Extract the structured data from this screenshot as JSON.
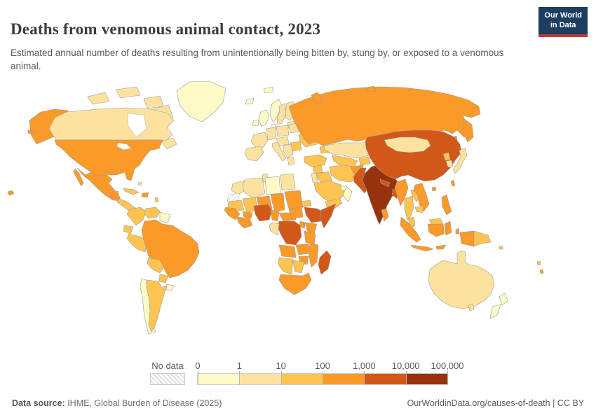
{
  "header": {
    "title": "Deaths from venomous animal contact, 2023",
    "subtitle": "Estimated annual number of deaths resulting from unintentionally being bitten by, stung by, or exposed to a venomous animal.",
    "logo": {
      "line1": "Our World",
      "line2": "in Data"
    }
  },
  "legend": {
    "no_data_label": "No data",
    "tick_labels": [
      "0",
      "1",
      "10",
      "100",
      "1,000",
      "10,000",
      "100,000"
    ]
  },
  "footer": {
    "source_label": "Data source:",
    "source_text": " IHME, Global Burden of Disease (2025)",
    "credit": "OurWorldinData.org/causes-of-death | CC BY"
  },
  "chart_data": {
    "type": "choropleth_map",
    "title": "Deaths from venomous animal contact",
    "year": 2023,
    "unit": "deaths",
    "scale": "log",
    "bin_edges": [
      0,
      1,
      10,
      100,
      1000,
      10000,
      100000
    ],
    "bin_colors": [
      "#fcfbc7",
      "#fde29f",
      "#fdc452",
      "#fb9929",
      "#d2581a",
      "#97330c"
    ],
    "no_data_fill": "hatch",
    "border_color": "#9a9a9a",
    "regions": [
      {
        "n": "greenland",
        "b": 0,
        "s": "252,130 270,117 298,116 322,126 318,146 306,160 288,174 270,166 256,150"
      },
      {
        "n": "canada-arctic-west",
        "b": 1,
        "s": "125,138 150,132 156,145 132,149"
      },
      {
        "n": "canada-arctic-mid",
        "b": 1,
        "s": "165,128 195,124 200,136 172,140"
      },
      {
        "n": "canada-arctic-east",
        "b": 1,
        "s": "205,141 228,137 233,152 210,155"
      },
      {
        "n": "baffin-island",
        "b": 1,
        "s": "218,156 240,150 247,168 228,173"
      },
      {
        "n": "alaska",
        "b": 3,
        "s": "42,172 58,160 78,156 97,158 97,198 80,194 66,200 52,206 44,192"
      },
      {
        "n": "aleutians",
        "b": 3,
        "s": "40,186 52,188 48,192 40,190"
      },
      {
        "n": "canada",
        "b": 1,
        "s": "95,160 140,156 180,154 215,156 240,162 248,172 238,182 246,192 236,202 228,200 80,200 70,184 78,168"
      },
      {
        "n": "hudson-bay",
        "b": "water",
        "s": "182,162 205,164 209,184 194,196 183,180"
      },
      {
        "n": "newfoundland-maritimes",
        "b": 1,
        "s": "230,202 247,197 252,206 238,213"
      },
      {
        "n": "usa",
        "b": 3,
        "s": "78,200 232,200 227,212 214,215 206,225 199,236 192,241 187,258 181,256 178,246 166,250 152,250 140,252 127,244 114,235 101,225 89,213 80,206"
      },
      {
        "n": "great-lakes",
        "b": "water",
        "s": "168,204 181,206 187,212 176,214 167,209"
      },
      {
        "n": "hawaii",
        "b": 3,
        "s": "11,274 17,272 20,277 13,279"
      },
      {
        "n": "mexico",
        "b": 3,
        "s": "110,240 122,250 130,246 141,252 152,250 160,256 155,262 162,270 170,280 172,287 161,286 149,278 138,268 128,258 118,250"
      },
      {
        "n": "baja-california",
        "b": 3,
        "s": "107,241 113,248 119,261 116,266 110,255 105,246"
      },
      {
        "n": "yucatan",
        "b": 3,
        "s": "157,275 168,273 170,281 160,284"
      },
      {
        "n": "central-america",
        "b": 2,
        "s": "170,284 181,288 191,296 199,300 195,305 184,301 173,293 167,289"
      },
      {
        "n": "cuba",
        "b": 2,
        "s": "176,269 191,271 198,275 190,278 178,273"
      },
      {
        "n": "hispaniola",
        "b": 3,
        "s": "203,276 212,275 210,282 202,281"
      },
      {
        "n": "bahamas",
        "b": 1,
        "s": "197,261 201,260 202,264 198,265"
      },
      {
        "n": "lesser-antilles",
        "b": 2,
        "s": "221,283 225,282 226,288 222,289"
      },
      {
        "n": "colombia",
        "b": 2,
        "s": "184,300 200,296 208,302 204,314 194,322 186,312 181,306"
      },
      {
        "n": "venezuela",
        "b": 2,
        "s": "208,298 222,296 228,302 224,310 212,312 206,306"
      },
      {
        "n": "guyanas",
        "b": 0,
        "s": "228,303 243,307 239,319 228,315"
      },
      {
        "n": "ecuador",
        "b": 2,
        "s": "177,322 190,324 186,334 176,330"
      },
      {
        "n": "peru",
        "b": 2,
        "s": "184,334 200,338 210,346 207,360 196,356 187,348 181,340"
      },
      {
        "n": "brazil",
        "b": 3,
        "s": "206,316 222,314 232,320 246,322 258,330 272,338 282,348 284,361 278,374 268,386 254,394 242,397 236,388 232,378 222,374 212,366 208,352 204,340 202,329"
      },
      {
        "n": "bolivia",
        "b": 2,
        "s": "212,368 228,372 234,382 228,390 216,384 210,376"
      },
      {
        "n": "paraguay",
        "b": 2,
        "s": "228,392 240,394 236,404 227,402"
      },
      {
        "n": "uruguay",
        "b": 0,
        "s": "238,406 248,408 244,416 237,413"
      },
      {
        "n": "chile",
        "b": 0,
        "s": "202,398 208,400 211,414 213,432 215,452 218,466 222,474 212,477 208,462 205,444 203,424 200,410"
      },
      {
        "n": "argentina",
        "b": 2,
        "s": "210,400 226,402 230,410 238,409 234,420 230,434 226,450 221,466 216,474 212,463 214,444 212,424 209,410"
      },
      {
        "n": "iceland",
        "b": 0,
        "s": "352,143 362,140 360,148 350,149"
      },
      {
        "n": "svalbard",
        "b": 0,
        "s": "376,127 388,124 390,131 378,133"
      },
      {
        "n": "uk",
        "b": 0,
        "s": "372,160 380,157 384,166 380,176 373,181 369,170"
      },
      {
        "n": "ireland",
        "b": 0,
        "s": "362,172 369,171 368,180 360,179"
      },
      {
        "n": "norway",
        "b": 0,
        "s": "388,148 398,142 402,152 396,164 390,175 385,165 386,155"
      },
      {
        "n": "sweden",
        "b": 1,
        "s": "398,152 406,148 408,162 402,176 396,178 395,168 399,160"
      },
      {
        "n": "finland",
        "b": 1,
        "s": "408,148 418,145 420,160 414,172 407,168 408,156"
      },
      {
        "n": "baltics",
        "b": 1,
        "s": "410,175 420,173 422,183 412,184"
      },
      {
        "n": "denmark",
        "b": 0,
        "s": "386,178 392,177 393,184 387,184"
      },
      {
        "n": "germany",
        "b": 1,
        "s": "380,184 392,182 394,198 382,200"
      },
      {
        "n": "poland",
        "b": 1,
        "s": "394,181 410,179 412,193 396,195"
      },
      {
        "n": "belarus",
        "b": 1,
        "s": "412,178 424,176 426,188 414,190"
      },
      {
        "n": "france",
        "b": 1,
        "s": "362,192 378,189 382,200 376,210 366,212 358,202"
      },
      {
        "n": "iberia",
        "b": 1,
        "s": "352,212 372,209 376,218 366,230 354,228 349,219"
      },
      {
        "n": "italy",
        "b": 1,
        "s": "388,205 396,203 402,216 408,226 403,230 396,220 389,211"
      },
      {
        "n": "central-europe",
        "b": 1,
        "s": "394,198 410,195 412,206 398,208"
      },
      {
        "n": "balkans",
        "b": 1,
        "s": "404,208 416,206 418,220 410,226 404,216"
      },
      {
        "n": "greece",
        "b": 1,
        "s": "410,226 418,224 420,234 412,236"
      },
      {
        "n": "romania",
        "b": 2,
        "s": "414,204 428,202 430,214 418,216"
      },
      {
        "n": "ukraine",
        "b": 2,
        "s": "426,192 448,189 456,196 452,206 436,210 428,202"
      },
      {
        "n": "turkey",
        "b": 2,
        "s": "434,224 456,221 466,226 462,236 444,238 434,232"
      },
      {
        "n": "caucasus",
        "b": 2,
        "s": "456,210 468,208 470,218 458,219"
      },
      {
        "n": "russia",
        "b": 3,
        "s": "412,152 430,144 452,136 475,130 505,126 540,124 575,125 610,129 642,135 668,143 683,152 685,163 672,168 660,165 666,177 670,189 662,196 652,186 645,191 635,186 622,188 608,191 592,194 576,197 562,199 548,201 536,203 524,199 510,202 496,199 482,203 470,206 460,208 450,202 440,206 432,196 426,186 418,170"
      },
      {
        "n": "novaya-zemlya",
        "b": 3,
        "s": "444,136 452,132 460,139 456,149 448,145"
      },
      {
        "n": "severnaya-zemlya",
        "b": 3,
        "s": "522,125 534,123 536,130 524,131"
      },
      {
        "n": "kamchatka",
        "b": 3,
        "s": "662,170 673,178 675,196 667,203 660,188"
      },
      {
        "n": "sakhalin",
        "b": 3,
        "s": "646,196 651,194 653,210 648,212"
      },
      {
        "n": "kazakhstan",
        "b": 1,
        "s": "462,208 490,204 515,204 532,203 538,213 526,222 508,226 490,222 474,220 463,214"
      },
      {
        "n": "uzbekistan-turkmenistan",
        "b": 2,
        "s": "474,222 500,226 510,230 504,240 488,238 476,230"
      },
      {
        "n": "kyrgyzstan-tajikistan",
        "b": 2,
        "s": "512,226 526,224 528,234 514,236"
      },
      {
        "n": "syria",
        "b": 2,
        "s": "446,238 458,236 460,246 448,248"
      },
      {
        "n": "iraq",
        "b": 2,
        "s": "452,248 468,245 474,258 460,262 452,254"
      },
      {
        "n": "levant",
        "b": 1,
        "s": "444,248 451,247 453,262 446,260"
      },
      {
        "n": "saudi-arabia",
        "b": 2,
        "s": "448,262 470,258 486,264 492,276 478,292 462,284 450,272"
      },
      {
        "n": "yemen",
        "b": 2,
        "s": "464,288 484,284 488,290 474,300 466,295"
      },
      {
        "n": "oman",
        "b": 0,
        "s": "494,266 502,274 497,288 489,280"
      },
      {
        "n": "uae",
        "b": 0,
        "s": "486,266 494,266 492,272 486,271"
      },
      {
        "n": "iran",
        "b": 2,
        "s": "470,238 492,236 508,240 514,254 500,260 484,258 472,250"
      },
      {
        "n": "morocco",
        "b": 1,
        "s": "332,262 348,258 352,270 340,278 330,272"
      },
      {
        "n": "western-sahara",
        "b": null,
        "s": "326,278 342,276 338,290 324,288"
      },
      {
        "n": "algeria",
        "b": 1,
        "s": "350,256 374,254 378,276 362,284 348,274 346,264"
      },
      {
        "n": "tunisia",
        "b": 1,
        "s": "374,250 381,248 382,258 376,260"
      },
      {
        "n": "libya",
        "b": 0,
        "s": "378,254 398,252 400,276 380,278"
      },
      {
        "n": "egypt",
        "b": 1,
        "s": "400,250 418,248 421,270 402,272"
      },
      {
        "n": "mauritania",
        "b": 2,
        "s": "326,288 344,286 348,300 332,302 325,294"
      },
      {
        "n": "mali",
        "b": 2,
        "s": "346,284 364,282 368,300 352,304 348,292"
      },
      {
        "n": "niger",
        "b": 3,
        "s": "366,282 384,280 388,298 372,302 368,290"
      },
      {
        "n": "chad",
        "b": 3,
        "s": "386,278 404,276 406,300 392,302 388,288"
      },
      {
        "n": "sudan",
        "b": 3,
        "s": "406,274 428,272 432,296 412,298 408,284"
      },
      {
        "n": "eritrea",
        "b": 2,
        "s": "430,288 442,286 444,294 432,296"
      },
      {
        "n": "senegal-guinea",
        "b": 3,
        "s": "322,296 336,298 342,306 336,314 326,308 320,300"
      },
      {
        "n": "burkina-faso",
        "b": 3,
        "s": "346,302 360,304 358,312 348,310"
      },
      {
        "n": "ivory-coast-ghana",
        "b": 3,
        "s": "338,310 356,312 360,322 348,326 340,318"
      },
      {
        "n": "nigeria",
        "b": 4,
        "s": "362,294 382,292 388,300 384,314 370,316 364,306"
      },
      {
        "n": "cameroon",
        "b": 3,
        "s": "386,300 398,302 396,316 388,314"
      },
      {
        "n": "central-african-republic",
        "b": 3,
        "s": "398,304 420,304 422,314 404,316"
      },
      {
        "n": "south-sudan",
        "b": 3,
        "s": "412,298 430,296 432,310 416,312"
      },
      {
        "n": "ethiopia",
        "b": 4,
        "s": "434,296 452,298 464,304 458,316 444,318 436,306"
      },
      {
        "n": "somalia",
        "b": 4,
        "s": "458,300 472,294 479,291 472,310 462,326 457,312"
      },
      {
        "n": "kenya",
        "b": 3,
        "s": "436,318 452,320 448,334 438,330"
      },
      {
        "n": "uganda",
        "b": 3,
        "s": "428,316 436,318 434,326 427,324"
      },
      {
        "n": "tanzania",
        "b": 3,
        "s": "434,330 450,334 448,350 436,346"
      },
      {
        "n": "dr-congo",
        "b": 4,
        "s": "398,316 420,316 428,322 430,338 422,350 408,348 400,334 396,324"
      },
      {
        "n": "congo-gabon",
        "b": 1,
        "s": "388,318 398,320 396,336 386,330 384,322"
      },
      {
        "n": "angola",
        "b": 3,
        "s": "398,350 420,352 422,368 402,366"
      },
      {
        "n": "zambia",
        "b": 3,
        "s": "422,350 440,348 442,362 426,364"
      },
      {
        "n": "mozambique",
        "b": 3,
        "s": "442,348 454,350 452,374 444,382 440,362"
      },
      {
        "n": "zimbabwe",
        "b": 3,
        "s": "426,366 440,366 438,378 428,376"
      },
      {
        "n": "namibia",
        "b": 2,
        "s": "398,368 418,370 416,392 404,388 397,378"
      },
      {
        "n": "botswana",
        "b": 2,
        "s": "418,372 434,374 430,390 420,388"
      },
      {
        "n": "south-africa",
        "b": 3,
        "s": "400,392 432,394 440,390 444,400 436,412 420,421 406,412 398,400"
      },
      {
        "n": "madagascar",
        "b": 4,
        "s": "456,368 466,358 472,366 468,384 458,392 454,378"
      },
      {
        "n": "afghanistan",
        "b": 3,
        "s": "500,238 518,236 516,250 504,248"
      },
      {
        "n": "pakistan",
        "b": 4,
        "s": "504,252 514,240 522,240 518,256 526,268 520,276 511,266 505,260"
      },
      {
        "n": "india",
        "b": 5,
        "s": "520,248 530,238 540,236 550,242 558,250 566,258 572,266 567,276 559,281 552,294 546,310 541,321 535,306 529,290 523,272 517,258"
      },
      {
        "n": "nepal",
        "b": 4,
        "s": "542,256 556,261 554,267 543,262"
      },
      {
        "n": "bangladesh",
        "b": 4,
        "s": "560,270 568,272 566,284 559,278"
      },
      {
        "n": "sri-lanka",
        "b": 3,
        "s": "544,300 551,298 554,310 548,316"
      },
      {
        "n": "china",
        "b": 4,
        "s": "524,196 545,192 565,188 590,186 612,186 632,188 648,196 656,206 658,218 650,228 642,240 632,250 620,257 606,259 594,255 582,250 572,252 564,256 554,252 545,246 536,238 528,226 522,212 521,202"
      },
      {
        "n": "mongolia",
        "b": 1,
        "s": "548,200 570,196 592,196 610,200 614,208 604,216 584,218 566,216 552,208"
      },
      {
        "n": "north-korea",
        "b": 2,
        "s": "632,220 640,218 642,228 635,229"
      },
      {
        "n": "south-korea",
        "b": 1,
        "s": "636,230 644,229 646,238 639,239"
      },
      {
        "n": "japan",
        "b": 1,
        "s": "655,215 663,211 666,222 660,232 655,242 649,248 646,242 653,232 657,224"
      },
      {
        "n": "taiwan",
        "b": 3,
        "s": "643,259 647,257 649,265 645,266"
      },
      {
        "n": "hainan",
        "b": 3,
        "s": "616,268 621,267 622,272 617,273"
      },
      {
        "n": "myanmar",
        "b": 3,
        "s": "566,260 578,256 582,268 577,284 571,294 566,278 563,268"
      },
      {
        "n": "thailand",
        "b": 2,
        "s": "577,284 588,280 590,296 586,308 581,314 577,298"
      },
      {
        "n": "laos",
        "b": 2,
        "s": "586,272 596,270 602,280 594,288 588,280"
      },
      {
        "n": "vietnam",
        "b": 3,
        "s": "592,264 602,262 608,278 612,292 604,302 598,292 596,280 590,272"
      },
      {
        "n": "cambodia",
        "b": 2,
        "s": "592,296 604,294 602,304 594,302"
      },
      {
        "n": "malaysia",
        "b": 2,
        "s": "582,312 590,310 592,322 586,326"
      },
      {
        "n": "sumatra",
        "b": 3,
        "s": "572,310 582,318 594,332 600,342 594,346 582,336 571,322"
      },
      {
        "n": "java",
        "b": 3,
        "s": "586,350 610,353 618,356 608,359 590,354"
      },
      {
        "n": "borneo-malaysia",
        "b": 2,
        "s": "612,314 628,312 632,320 616,322"
      },
      {
        "n": "kalimantan",
        "b": 3,
        "s": "610,320 632,320 634,334 622,338 612,332"
      },
      {
        "n": "sulawesi",
        "b": 3,
        "s": "634,320 642,316 644,332 636,336"
      },
      {
        "n": "moluccas",
        "b": 3,
        "s": "650,328 654,326 655,334 650,334"
      },
      {
        "n": "lesser-sunda",
        "b": 3,
        "s": "622,352 636,350 632,356 623,356"
      },
      {
        "n": "philippines",
        "b": 3,
        "s": "630,282 637,278 640,290 644,302 637,307 631,295"
      },
      {
        "n": "indonesian-papua",
        "b": 3,
        "s": "656,332 676,330 676,352 658,348"
      },
      {
        "n": "papua-new-guinea",
        "b": 2,
        "s": "676,330 696,336 700,346 686,348 676,352"
      },
      {
        "n": "australia",
        "b": 1,
        "s": "613,385 622,378 632,372 645,375 652,377 652,362 658,358 664,360 663,374 668,378 680,380 692,386 702,394 705,406 700,420 690,430 676,438 660,441 644,438 630,430 618,418 611,402"
      },
      {
        "n": "tasmania",
        "b": 1,
        "s": "668,436 674,434 676,442 670,444"
      },
      {
        "n": "new-zealand-north",
        "b": 0,
        "s": "712,424 720,419 724,430 716,436"
      },
      {
        "n": "new-zealand-south",
        "b": 0,
        "s": "702,438 714,435 709,450 699,455"
      },
      {
        "n": "fiji",
        "b": 2,
        "s": "766,374 770,373 771,378 767,379"
      },
      {
        "n": "vanuatu",
        "b": 3,
        "s": "770,386 774,385 775,390 771,391"
      },
      {
        "n": "solomon-islands",
        "b": 2,
        "s": "712,352 716,351 717,356 712,356"
      }
    ]
  }
}
